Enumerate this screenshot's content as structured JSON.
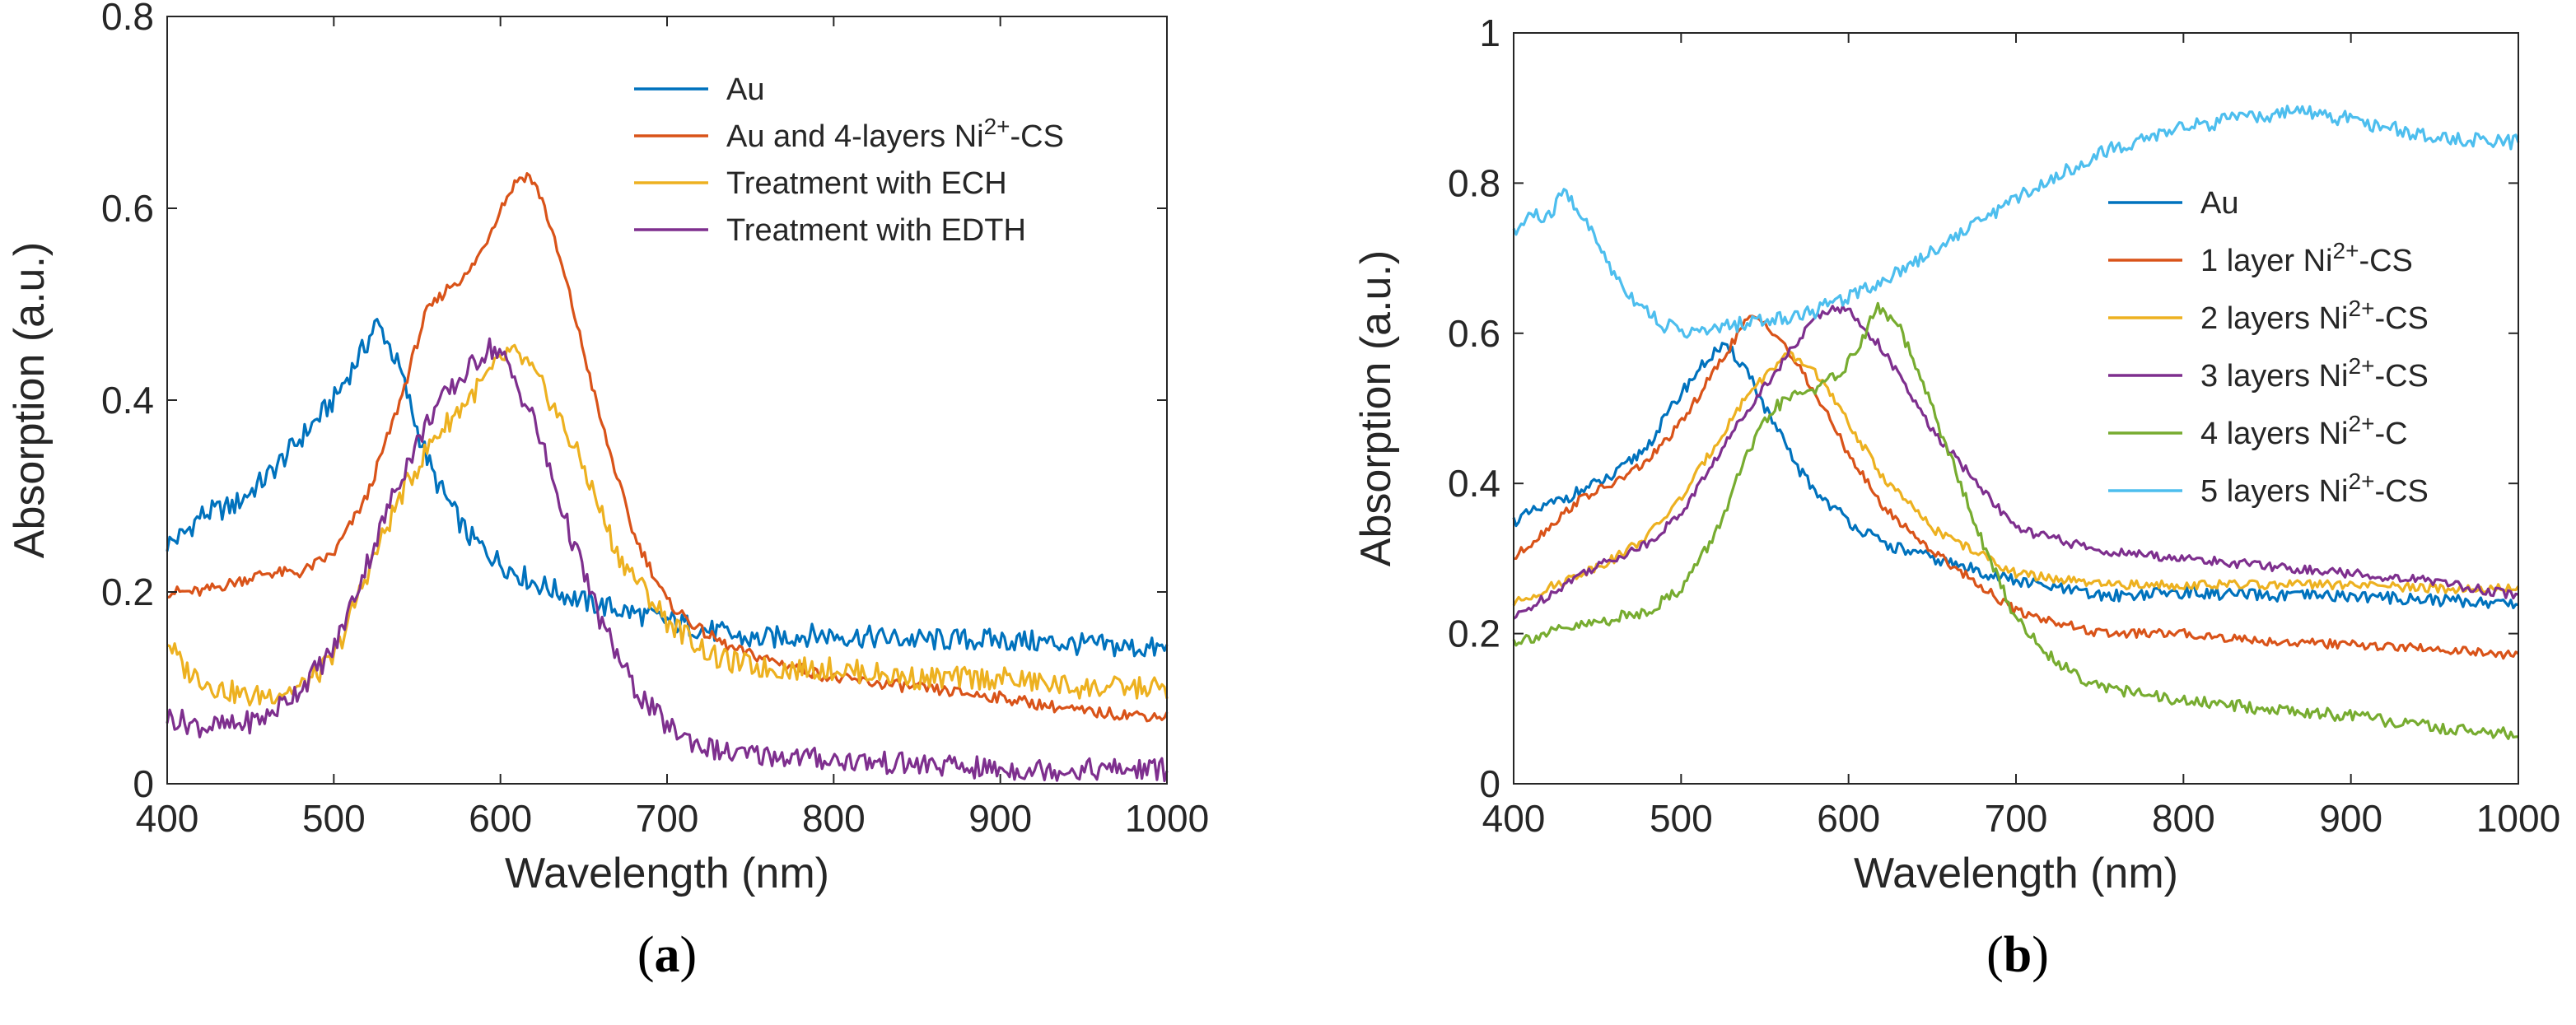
{
  "chart_data": [
    {
      "type": "line",
      "panel_label": "(a)",
      "xlabel": "Wavelength (nm)",
      "ylabel": "Absorption (a.u.)",
      "xlim": [
        400,
        1000
      ],
      "ylim": [
        0,
        0.8
      ],
      "xticks": [
        400,
        500,
        600,
        700,
        800,
        900,
        1000
      ],
      "yticks": [
        0,
        0.2,
        0.4,
        0.6,
        0.8
      ],
      "ytick_labels": [
        "0",
        "0.2",
        "0.4",
        "0.6",
        "0.8"
      ],
      "grid": false,
      "legend_position": "top-right",
      "series": [
        {
          "name": "Au",
          "color": "#0072BD",
          "noise": 0.012,
          "x": [
            400,
            410,
            420,
            440,
            460,
            480,
            500,
            510,
            520,
            525,
            530,
            540,
            550,
            560,
            570,
            580,
            600,
            620,
            650,
            700,
            750,
            780,
            800,
            850,
            900,
            950,
            1000
          ],
          "y": [
            0.25,
            0.26,
            0.28,
            0.29,
            0.32,
            0.36,
            0.4,
            0.43,
            0.46,
            0.48,
            0.47,
            0.43,
            0.37,
            0.32,
            0.29,
            0.26,
            0.23,
            0.21,
            0.19,
            0.17,
            0.15,
            0.155,
            0.155,
            0.15,
            0.15,
            0.145,
            0.14
          ]
        },
        {
          "name": "Au and 4-layers Ni2+-CS",
          "color": "#D95319",
          "noise": 0.006,
          "x": [
            400,
            420,
            440,
            460,
            480,
            500,
            520,
            540,
            555,
            570,
            580,
            590,
            600,
            610,
            617,
            625,
            640,
            660,
            680,
            700,
            720,
            740,
            760,
            800,
            850,
            900,
            950,
            1000
          ],
          "y": [
            0.2,
            0.2,
            0.21,
            0.22,
            0.22,
            0.24,
            0.3,
            0.4,
            0.49,
            0.52,
            0.53,
            0.56,
            0.6,
            0.63,
            0.635,
            0.61,
            0.52,
            0.38,
            0.26,
            0.19,
            0.16,
            0.14,
            0.13,
            0.11,
            0.1,
            0.09,
            0.075,
            0.07
          ]
        },
        {
          "name": "Treatment with ECH",
          "color": "#EDB120",
          "noise": 0.012,
          "x": [
            400,
            410,
            430,
            450,
            480,
            500,
            520,
            540,
            560,
            580,
            600,
            605,
            615,
            630,
            650,
            670,
            700,
            730,
            760,
            800,
            850,
            900,
            950,
            1000
          ],
          "y": [
            0.15,
            0.12,
            0.1,
            0.09,
            0.1,
            0.13,
            0.22,
            0.3,
            0.36,
            0.4,
            0.44,
            0.45,
            0.44,
            0.4,
            0.33,
            0.24,
            0.17,
            0.13,
            0.12,
            0.12,
            0.11,
            0.11,
            0.1,
            0.1
          ]
        },
        {
          "name": "Treatment with EDTH",
          "color": "#7E2F8E",
          "noise": 0.012,
          "x": [
            400,
            420,
            440,
            460,
            480,
            500,
            520,
            540,
            560,
            580,
            593,
            600,
            620,
            640,
            660,
            680,
            700,
            720,
            740,
            760,
            800,
            850,
            900,
            950,
            1000
          ],
          "y": [
            0.07,
            0.06,
            0.06,
            0.07,
            0.1,
            0.14,
            0.23,
            0.32,
            0.39,
            0.43,
            0.455,
            0.45,
            0.38,
            0.27,
            0.17,
            0.1,
            0.06,
            0.04,
            0.03,
            0.03,
            0.025,
            0.02,
            0.015,
            0.015,
            0.015
          ]
        }
      ],
      "legend": [
        {
          "text": "Au"
        },
        {
          "text": "Au and 4-layers Ni",
          "sup": "2+",
          "tail": "-CS"
        },
        {
          "text": "Treatment with ECH"
        },
        {
          "text": "Treatment with EDTH"
        }
      ]
    },
    {
      "type": "line",
      "panel_label": "(b)",
      "xlabel": "Wavelength (nm)",
      "ylabel": "Absorption (a.u.)",
      "xlim": [
        400,
        1000
      ],
      "ylim": [
        0,
        1
      ],
      "xticks": [
        400,
        500,
        600,
        700,
        800,
        900,
        1000
      ],
      "yticks": [
        0,
        0.2,
        0.4,
        0.6,
        0.8,
        1
      ],
      "ytick_labels": [
        "0",
        "0.2",
        "0.4",
        "0.6",
        "0.8",
        "1"
      ],
      "grid": false,
      "legend_position": "right",
      "series": [
        {
          "name": "Au",
          "color": "#0072BD",
          "noise": 0.008,
          "x": [
            400,
            420,
            440,
            460,
            480,
            500,
            510,
            520,
            525,
            530,
            540,
            550,
            560,
            570,
            580,
            600,
            620,
            650,
            700,
            750,
            800,
            850,
            900,
            950,
            1000
          ],
          "y": [
            0.35,
            0.37,
            0.39,
            0.41,
            0.45,
            0.52,
            0.55,
            0.575,
            0.58,
            0.575,
            0.55,
            0.5,
            0.46,
            0.42,
            0.39,
            0.35,
            0.32,
            0.3,
            0.27,
            0.25,
            0.255,
            0.25,
            0.25,
            0.245,
            0.24
          ]
        },
        {
          "name": "1 layer Ni2+-CS",
          "color": "#D95319",
          "noise": 0.006,
          "x": [
            400,
            420,
            440,
            460,
            480,
            500,
            520,
            540,
            550,
            560,
            580,
            600,
            620,
            650,
            700,
            750,
            800,
            850,
            900,
            950,
            1000
          ],
          "y": [
            0.3,
            0.34,
            0.38,
            0.4,
            0.43,
            0.48,
            0.55,
            0.62,
            0.615,
            0.59,
            0.52,
            0.44,
            0.37,
            0.31,
            0.23,
            0.2,
            0.2,
            0.19,
            0.185,
            0.18,
            0.17
          ]
        },
        {
          "name": "2 layers Ni2+-CS",
          "color": "#EDB120",
          "noise": 0.006,
          "x": [
            400,
            420,
            440,
            460,
            480,
            500,
            520,
            540,
            560,
            565,
            580,
            600,
            620,
            650,
            700,
            750,
            800,
            850,
            900,
            950,
            1000
          ],
          "y": [
            0.24,
            0.26,
            0.28,
            0.3,
            0.33,
            0.38,
            0.45,
            0.52,
            0.565,
            0.57,
            0.55,
            0.48,
            0.41,
            0.34,
            0.28,
            0.265,
            0.265,
            0.265,
            0.265,
            0.26,
            0.26
          ]
        },
        {
          "name": "3 layers Ni2+-CS",
          "color": "#7E2F8E",
          "noise": 0.006,
          "x": [
            400,
            420,
            440,
            460,
            480,
            500,
            520,
            540,
            560,
            580,
            590,
            600,
            620,
            650,
            700,
            750,
            800,
            850,
            900,
            950,
            1000
          ],
          "y": [
            0.22,
            0.25,
            0.28,
            0.3,
            0.32,
            0.36,
            0.43,
            0.5,
            0.56,
            0.62,
            0.635,
            0.63,
            0.58,
            0.47,
            0.34,
            0.31,
            0.3,
            0.29,
            0.28,
            0.27,
            0.25
          ]
        },
        {
          "name": "4 layers Ni2+-C",
          "color": "#77AC30",
          "noise": 0.008,
          "x": [
            400,
            420,
            440,
            460,
            480,
            500,
            520,
            540,
            555,
            570,
            585,
            600,
            610,
            617,
            630,
            650,
            680,
            700,
            720,
            740,
            760,
            800,
            850,
            900,
            950,
            1000
          ],
          "y": [
            0.19,
            0.2,
            0.21,
            0.22,
            0.23,
            0.26,
            0.33,
            0.44,
            0.5,
            0.52,
            0.53,
            0.56,
            0.6,
            0.635,
            0.61,
            0.5,
            0.32,
            0.22,
            0.17,
            0.14,
            0.125,
            0.11,
            0.1,
            0.09,
            0.075,
            0.065
          ]
        },
        {
          "name": "5 layers Ni2+-CS",
          "color": "#4DBEEE",
          "noise": 0.01,
          "x": [
            400,
            410,
            420,
            430,
            440,
            450,
            460,
            470,
            480,
            490,
            500,
            510,
            520,
            540,
            560,
            580,
            600,
            620,
            650,
            700,
            750,
            800,
            850,
            870,
            900,
            950,
            1000
          ],
          "y": [
            0.73,
            0.76,
            0.75,
            0.79,
            0.76,
            0.72,
            0.68,
            0.65,
            0.63,
            0.61,
            0.605,
            0.6,
            0.605,
            0.615,
            0.62,
            0.63,
            0.65,
            0.67,
            0.71,
            0.78,
            0.84,
            0.875,
            0.89,
            0.895,
            0.885,
            0.86,
            0.855
          ]
        }
      ],
      "legend": [
        {
          "text": "Au"
        },
        {
          "text": "1 layer Ni",
          "sup": "2+",
          "tail": "-CS"
        },
        {
          "text": "2 layers Ni",
          "sup": "2+",
          "tail": "-CS"
        },
        {
          "text": "3 layers Ni",
          "sup": "2+",
          "tail": "-CS"
        },
        {
          "text": "4 layers Ni",
          "sup": "2+",
          "tail": "-C"
        },
        {
          "text": "5 layers Ni",
          "sup": "2+",
          "tail": "-CS"
        }
      ]
    }
  ]
}
